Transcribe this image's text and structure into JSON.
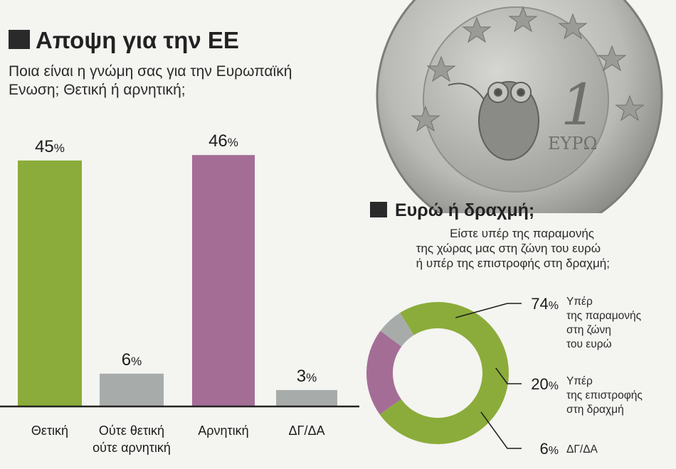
{
  "bar_panel": {
    "title": "Αποψη για την ΕΕ",
    "question_lines": [
      "Ποια είναι η γνώμη σας για την Ευρωπαϊκή",
      "Ενωση; Θετική ή αρνητική;"
    ]
  },
  "donut_panel": {
    "title": "Ευρώ ή δραχμή;",
    "question_lines": [
      "Είστε υπέρ της παραμονής",
      "της χώρας μας στη ζώνη του ευρώ",
      "ή υπέρ της επιστροφής στη δραχμή;"
    ],
    "slice_labels": [
      [
        "Υπέρ",
        "της παραμονής",
        "στη ζώνη",
        "του ευρώ"
      ],
      [
        "Υπέρ",
        "της επιστροφής",
        "στη δραχμή"
      ],
      [
        "ΔΓ/ΔΑ"
      ]
    ]
  },
  "coin": {
    "value_text": "1",
    "currency_text": "ΕΥΡΩ"
  },
  "colors": {
    "green": "#8bac3a",
    "purple": "#a46d96",
    "gray": "#a7acab",
    "axis": "#222222"
  },
  "chart_data": [
    {
      "type": "bar",
      "title": "Αποψη για την ΕΕ",
      "categories": [
        "Θετική",
        "Ούτε θετική ούτε αρνητική",
        "Αρνητική",
        "ΔΓ/ΔΑ"
      ],
      "category_label_lines": [
        [
          "Θετική"
        ],
        [
          "Ούτε θετική",
          "ούτε αρνητική"
        ],
        [
          "Αρνητική"
        ],
        [
          "ΔΓ/ΔΑ"
        ]
      ],
      "values": [
        45,
        6,
        46,
        3
      ],
      "unit": "%",
      "bar_colors": [
        "#8bac3a",
        "#a7acab",
        "#a46d96",
        "#a7acab"
      ],
      "ylim": [
        0,
        50
      ],
      "grid": false,
      "legend": "none"
    },
    {
      "type": "pie",
      "style": "donut",
      "title": "Ευρώ ή δραχμή;",
      "labels": [
        "Υπέρ της παραμονής στη ζώνη του ευρώ",
        "Υπέρ της επιστροφής στη δραχμή",
        "ΔΓ/ΔΑ"
      ],
      "values": [
        74,
        20,
        6
      ],
      "unit": "%",
      "colors": [
        "#8bac3a",
        "#a46d96",
        "#a7acab"
      ],
      "legend": "right"
    }
  ]
}
